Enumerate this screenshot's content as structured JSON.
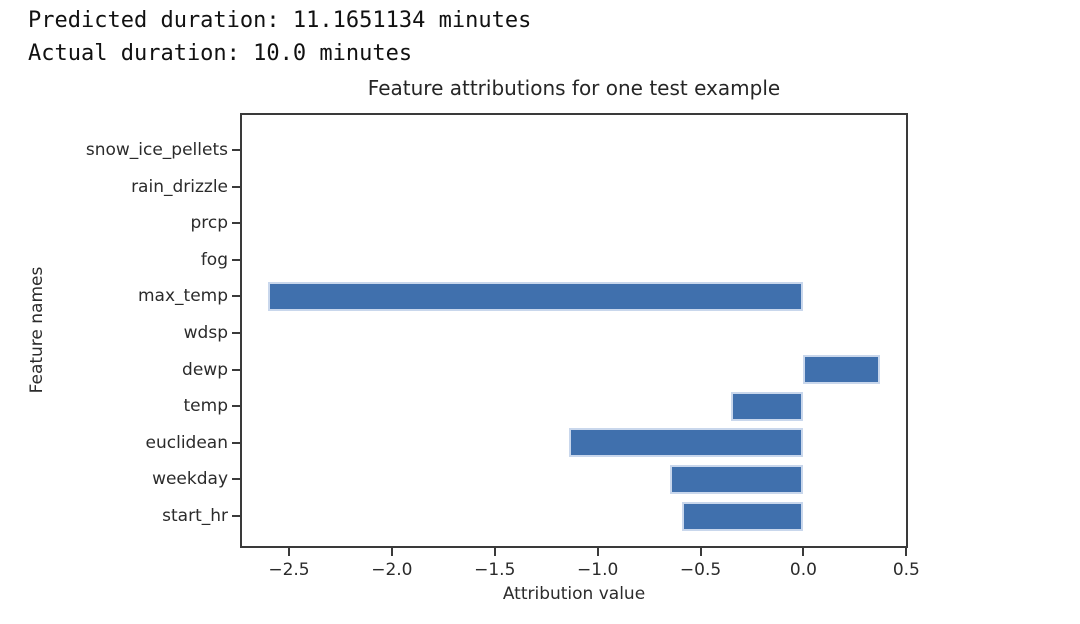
{
  "header": {
    "line1": "Predicted duration: 11.1651134 minutes",
    "line2": "Actual duration: 10.0 minutes"
  },
  "chart_data": {
    "type": "bar",
    "orientation": "horizontal",
    "title": "Feature attributions for one test example",
    "xlabel": "Attribution value",
    "ylabel": "Feature names",
    "categories_top_to_bottom": [
      "snow_ice_pellets",
      "rain_drizzle",
      "prcp",
      "fog",
      "max_temp",
      "wdsp",
      "dewp",
      "temp",
      "euclidean",
      "weekday",
      "start_hr"
    ],
    "values_top_to_bottom": [
      0,
      0,
      0,
      0,
      -2.6,
      0,
      0.37,
      -0.35,
      -1.14,
      -0.65,
      -0.59
    ],
    "xlim": [
      -2.738,
      0.508
    ],
    "xticks": [
      -2.5,
      -2.0,
      -1.5,
      -1.0,
      -0.5,
      0.0,
      0.5
    ],
    "xtick_labels": [
      "−2.5",
      "−2.0",
      "−1.5",
      "−1.0",
      "−0.5",
      "0.0",
      "0.5"
    ],
    "grid": false,
    "legend": null,
    "bar_color": "#4070ad",
    "bar_edge_color": "#c9d7ec"
  }
}
